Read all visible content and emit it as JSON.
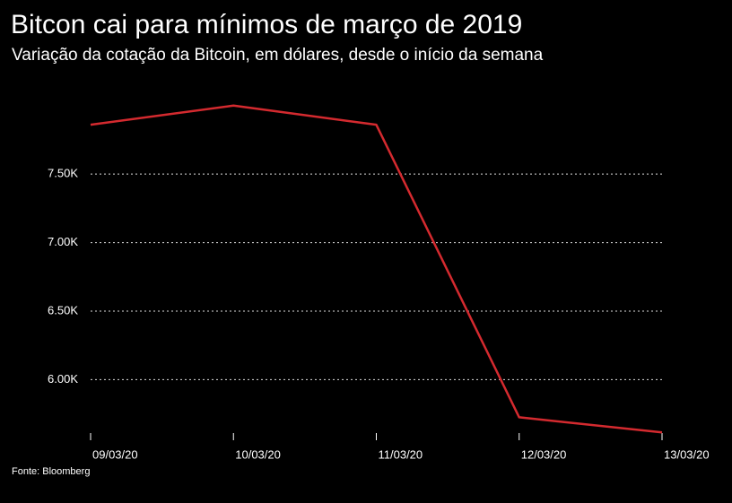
{
  "chart_data": {
    "type": "line",
    "title": "Bitcon cai para mínimos de março de 2019",
    "subtitle": "Variação da cotação da Bitcoin, em dólares, desde o início da semana",
    "source": "Fonte: Bloomberg",
    "categories": [
      "09/03/20",
      "10/03/20",
      "11/03/20",
      "12/03/20",
      "13/03/20"
    ],
    "series": [
      {
        "name": "Bitcoin",
        "color": "#d42a2f",
        "values": [
          7860,
          8000,
          7860,
          5725,
          5615
        ]
      }
    ],
    "ylim": [
      5610,
      8090
    ],
    "yticks": [
      {
        "value": 6000,
        "label": "6.00K"
      },
      {
        "value": 6500,
        "label": "6.50K"
      },
      {
        "value": 7000,
        "label": "7.00K"
      },
      {
        "value": 7500,
        "label": "7.50K"
      }
    ],
    "grid": true
  }
}
